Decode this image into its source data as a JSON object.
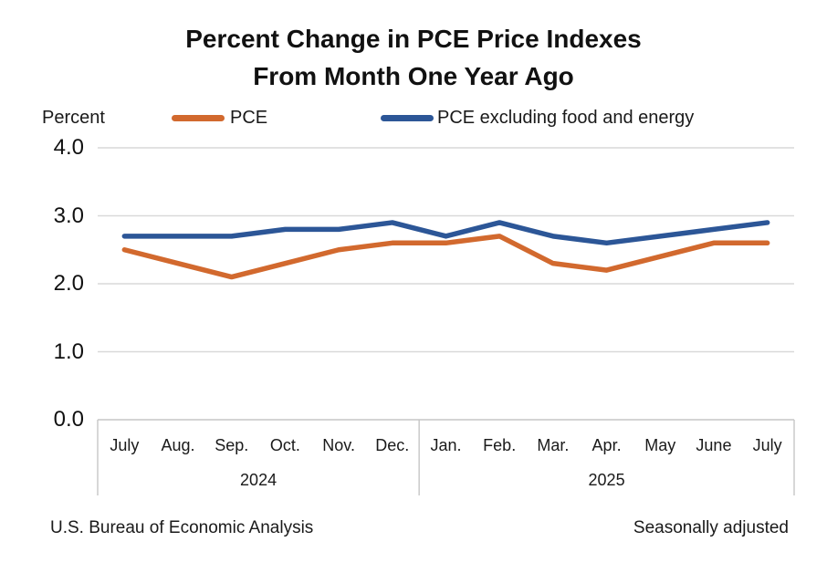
{
  "title": {
    "line1": "Percent Change in PCE Price Indexes",
    "line2": "From Month One Year Ago"
  },
  "axis": {
    "unit_label": "Percent",
    "yticks": [
      "0.0",
      "1.0",
      "2.0",
      "3.0",
      "4.0"
    ]
  },
  "legend": {
    "items": [
      {
        "label": "PCE",
        "color": "#D2692E"
      },
      {
        "label": "PCE excluding food and energy",
        "color": "#2C5697"
      }
    ]
  },
  "footer": {
    "left": "U.S. Bureau of Economic Analysis",
    "right": "Seasonally adjusted"
  },
  "colors": {
    "gridline": "#D9D9D9",
    "axis_band_border": "#C6C6C6",
    "pce_line": "#D2692E",
    "core_line": "#2C5697"
  },
  "chart_data": {
    "type": "line",
    "title": "Percent Change in PCE Price Indexes",
    "subtitle": "From Month One Year Ago",
    "ylabel": "Percent",
    "ylim": [
      0.0,
      4.0
    ],
    "ytick_values": [
      0.0,
      1.0,
      2.0,
      3.0,
      4.0
    ],
    "grid": true,
    "legend_position": "top",
    "categories": [
      "July",
      "Aug.",
      "Sep.",
      "Oct.",
      "Nov.",
      "Dec.",
      "Jan.",
      "Feb.",
      "Mar.",
      "Apr.",
      "May",
      "June",
      "July"
    ],
    "year_groups": [
      {
        "label": "2024",
        "from": 0,
        "to": 5
      },
      {
        "label": "2025",
        "from": 6,
        "to": 12
      }
    ],
    "series": [
      {
        "name": "PCE",
        "color": "#D2692E",
        "values": [
          2.5,
          2.3,
          2.1,
          2.3,
          2.5,
          2.6,
          2.6,
          2.7,
          2.3,
          2.2,
          2.4,
          2.6,
          2.6
        ]
      },
      {
        "name": "PCE excluding food and energy",
        "color": "#2C5697",
        "values": [
          2.7,
          2.7,
          2.7,
          2.8,
          2.8,
          2.9,
          2.7,
          2.9,
          2.7,
          2.6,
          2.7,
          2.8,
          2.9
        ]
      }
    ]
  }
}
